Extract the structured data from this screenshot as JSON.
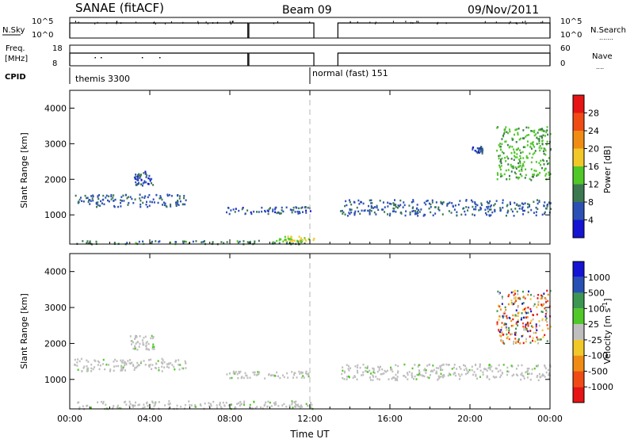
{
  "header": {
    "station": "SANAE (fitACF)",
    "beam": "Beam 09",
    "date": "09/Nov/2011"
  },
  "param_panels": {
    "nsky_label": "N.Sky",
    "nsearch_label": "N.Search",
    "freq_label_line1": "Freq.",
    "freq_label_line2": "[MHz]",
    "nave_label": "Nave",
    "cpid_label": "CPID",
    "noise_left_ticks": [
      "10^5",
      "10^0"
    ],
    "noise_right_ticks": [
      "10^5",
      "10^0"
    ],
    "freq_left_ticks": [
      "18",
      "8"
    ],
    "nave_right_ticks": [
      "60",
      "0"
    ],
    "cpid_segments": [
      {
        "label": "themis 3300",
        "start_hour": 0.0
      },
      {
        "label": "normal (fast) 151",
        "start_hour": 12.0
      }
    ],
    "data_gaps_hours": [
      [
        8.9,
        8.95
      ],
      [
        12.2,
        13.4
      ]
    ]
  },
  "time_axis": {
    "title": "Time UT",
    "ticks": [
      "00:00",
      "04:00",
      "08:00",
      "12:00",
      "16:00",
      "20:00",
      "00:00"
    ],
    "range_hours": [
      0,
      24
    ]
  },
  "colors": {
    "power": [
      "#1414d2",
      "#2d50b4",
      "#3c7850",
      "#50c828",
      "#f0c828",
      "#f08c14",
      "#f04b14",
      "#e61414"
    ],
    "velocity": [
      "#1414d2",
      "#2850b4",
      "#3c9650",
      "#50c828",
      "#bebebe",
      "#f0c828",
      "#f08c14",
      "#f04b14",
      "#e61414"
    ]
  },
  "chart_data": [
    {
      "type": "heatmap",
      "title": "Power",
      "ylabel": "Slant Range [km]",
      "xlabel": "Time UT",
      "xlim_hours": [
        0,
        24
      ],
      "ylim": [
        180,
        4500
      ],
      "y_ticks": [
        1000,
        2000,
        3000,
        4000
      ],
      "colorbar": {
        "label": "Power [dB]",
        "ticks": [
          4,
          8,
          12,
          16,
          20,
          24,
          28
        ],
        "range": [
          0,
          30
        ]
      },
      "features": [
        {
          "name": "near-range band",
          "t_start": 0.3,
          "t_end": 12.3,
          "range_min": 200,
          "range_max": 300,
          "value": 10
        },
        {
          "name": "near-range enhancement",
          "t_start": 10.3,
          "t_end": 12.2,
          "range_min": 280,
          "range_max": 420,
          "value": 16
        },
        {
          "name": "early echoes",
          "t_start": 0.2,
          "t_end": 5.8,
          "range_min": 1250,
          "range_max": 1600,
          "value": 7
        },
        {
          "name": "04:00 patch",
          "t_start": 3.0,
          "t_end": 4.2,
          "range_min": 1850,
          "range_max": 2250,
          "value": 6
        },
        {
          "name": "morning band",
          "t_start": 7.8,
          "t_end": 12.0,
          "range_min": 1050,
          "range_max": 1250,
          "value": 6
        },
        {
          "name": "afternoon band",
          "t_start": 13.5,
          "t_end": 24.0,
          "range_min": 1000,
          "range_max": 1450,
          "value": 7
        },
        {
          "name": "evening strip",
          "t_start": 21.3,
          "t_end": 24.0,
          "range_min": 2000,
          "range_max": 3500,
          "value": 13
        },
        {
          "name": "20:00 patch",
          "t_start": 20.0,
          "t_end": 20.6,
          "range_min": 2750,
          "range_max": 2950,
          "value": 6
        }
      ]
    },
    {
      "type": "heatmap",
      "title": "Velocity",
      "ylabel": "Slant Range [km]",
      "xlabel": "Time UT",
      "xlim_hours": [
        0,
        24
      ],
      "ylim": [
        180,
        4500
      ],
      "y_ticks": [
        1000,
        2000,
        3000,
        4000
      ],
      "colorbar": {
        "label": "Velocity [m s^-1]",
        "ticks": [
          1000,
          500,
          100,
          25,
          -25,
          -100,
          -500,
          -1000
        ],
        "range": [
          -1200,
          1200
        ]
      },
      "features": [
        {
          "name": "near-range band",
          "t_start": 0.3,
          "t_end": 12.3,
          "range_min": 200,
          "range_max": 420,
          "value": 0
        },
        {
          "name": "early echoes",
          "t_start": 0.2,
          "t_end": 5.8,
          "range_min": 1250,
          "range_max": 1600,
          "value": 0
        },
        {
          "name": "04:00 patch",
          "t_start": 3.0,
          "t_end": 4.2,
          "range_min": 1850,
          "range_max": 2250,
          "value": 0
        },
        {
          "name": "morning band",
          "t_start": 7.8,
          "t_end": 12.0,
          "range_min": 1050,
          "range_max": 1250,
          "value": 0
        },
        {
          "name": "afternoon band",
          "t_start": 13.5,
          "t_end": 24.0,
          "range_min": 1000,
          "range_max": 1450,
          "value": 0
        },
        {
          "name": "evening strip",
          "t_start": 21.3,
          "t_end": 24.0,
          "range_min": 2000,
          "range_max": 3500,
          "value": -500
        }
      ]
    }
  ]
}
